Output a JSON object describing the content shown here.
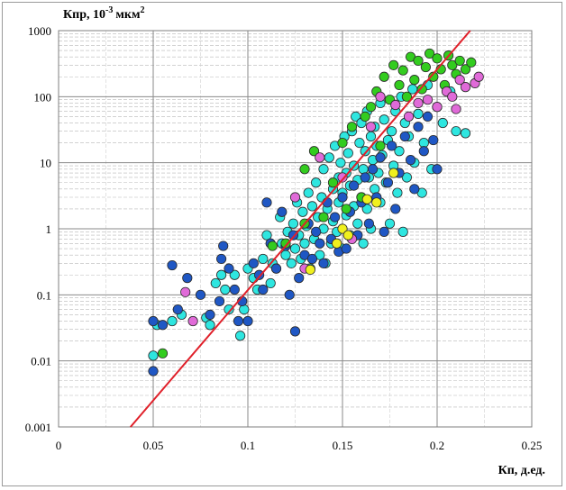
{
  "chart_data": {
    "type": "scatter",
    "title": "",
    "ylabel": "Кпр, 10",
    "ylabel_exp": "-3",
    "ylabel_unit": "мкм",
    "ylabel_sup": "2",
    "xlabel": "Кп, д.ед.",
    "xscale": "linear",
    "yscale": "log",
    "xlim": [
      0,
      0.25
    ],
    "ylim": [
      0.001,
      1000
    ],
    "x_ticks": [
      0,
      0.05,
      0.1,
      0.15,
      0.2,
      0.25
    ],
    "x_tick_labels": [
      "0",
      "0.05",
      "0.1",
      "0.15",
      "0.2",
      "0.25"
    ],
    "y_ticks": [
      0.001,
      0.01,
      0.1,
      1,
      10,
      100,
      1000
    ],
    "y_tick_labels": [
      "0.001",
      "0.01",
      "0.1",
      "1",
      "10",
      "100",
      "1000"
    ],
    "grid": "major and minor",
    "colors": {
      "trend": "#e0202a",
      "cyan": "#2ee6e0",
      "blue": "#1f57c4",
      "green": "#33cc1f",
      "magenta": "#e06ad8",
      "yellow": "#f0f01e",
      "marker_edge": "#2a2a2a"
    },
    "trend_line": {
      "x": [
        0.038,
        0.2175
      ],
      "y": [
        0.001,
        1000
      ]
    },
    "series": [
      {
        "name": "cyan",
        "color": "#2ee6e0",
        "points": [
          [
            0.05,
            0.012
          ],
          [
            0.052,
            0.035
          ],
          [
            0.06,
            0.04
          ],
          [
            0.065,
            0.05
          ],
          [
            0.078,
            0.045
          ],
          [
            0.08,
            0.035
          ],
          [
            0.083,
            0.15
          ],
          [
            0.086,
            0.2
          ],
          [
            0.088,
            0.12
          ],
          [
            0.09,
            0.06
          ],
          [
            0.093,
            0.2
          ],
          [
            0.096,
            0.024
          ],
          [
            0.098,
            0.06
          ],
          [
            0.1,
            0.25
          ],
          [
            0.103,
            0.18
          ],
          [
            0.105,
            0.12
          ],
          [
            0.108,
            0.35
          ],
          [
            0.11,
            0.8
          ],
          [
            0.112,
            0.15
          ],
          [
            0.113,
            0.3
          ],
          [
            0.115,
            0.25
          ],
          [
            0.117,
            1.5
          ],
          [
            0.118,
            0.6
          ],
          [
            0.12,
            0.4
          ],
          [
            0.121,
            0.9
          ],
          [
            0.123,
            0.3
          ],
          [
            0.124,
            1.2
          ],
          [
            0.125,
            0.5
          ],
          [
            0.126,
            2.5
          ],
          [
            0.127,
            0.8
          ],
          [
            0.128,
            0.35
          ],
          [
            0.129,
            1.8
          ],
          [
            0.13,
            0.6
          ],
          [
            0.131,
            1.1
          ],
          [
            0.132,
            3.5
          ],
          [
            0.133,
            0.25
          ],
          [
            0.134,
            2.2
          ],
          [
            0.135,
            0.7
          ],
          [
            0.136,
            5
          ],
          [
            0.137,
            1.5
          ],
          [
            0.138,
            0.4
          ],
          [
            0.139,
            3
          ],
          [
            0.14,
            1
          ],
          [
            0.14,
            8
          ],
          [
            0.141,
            0.3
          ],
          [
            0.142,
            2
          ],
          [
            0.143,
            12
          ],
          [
            0.144,
            0.6
          ],
          [
            0.145,
            4
          ],
          [
            0.145,
            1.3
          ],
          [
            0.146,
            18
          ],
          [
            0.147,
            0.9
          ],
          [
            0.148,
            6
          ],
          [
            0.148,
            2.5
          ],
          [
            0.149,
            10
          ],
          [
            0.15,
            0.5
          ],
          [
            0.15,
            3.5
          ],
          [
            0.151,
            25
          ],
          [
            0.152,
            1.6
          ],
          [
            0.152,
            7
          ],
          [
            0.153,
            14
          ],
          [
            0.154,
            0.8
          ],
          [
            0.154,
            4.5
          ],
          [
            0.155,
            30
          ],
          [
            0.156,
            2.2
          ],
          [
            0.156,
            9
          ],
          [
            0.157,
            50
          ],
          [
            0.158,
            1.2
          ],
          [
            0.158,
            5.5
          ],
          [
            0.159,
            20
          ],
          [
            0.16,
            3
          ],
          [
            0.16,
            40
          ],
          [
            0.161,
            0.6
          ],
          [
            0.161,
            8
          ],
          [
            0.162,
            15
          ],
          [
            0.163,
            2
          ],
          [
            0.163,
            60
          ],
          [
            0.164,
            6
          ],
          [
            0.165,
            25
          ],
          [
            0.165,
            1
          ],
          [
            0.166,
            11
          ],
          [
            0.167,
            4
          ],
          [
            0.167,
            35
          ],
          [
            0.168,
            18
          ],
          [
            0.169,
            7
          ],
          [
            0.17,
            80
          ],
          [
            0.17,
            2.5
          ],
          [
            0.171,
            13
          ],
          [
            0.172,
            45
          ],
          [
            0.173,
            5
          ],
          [
            0.174,
            22
          ],
          [
            0.175,
            1.2
          ],
          [
            0.176,
            30
          ],
          [
            0.177,
            9
          ],
          [
            0.178,
            60
          ],
          [
            0.179,
            3.5
          ],
          [
            0.18,
            15
          ],
          [
            0.181,
            100
          ],
          [
            0.182,
            0.9
          ],
          [
            0.183,
            40
          ],
          [
            0.184,
            6
          ],
          [
            0.185,
            25
          ],
          [
            0.187,
            130
          ],
          [
            0.188,
            10
          ],
          [
            0.19,
            55
          ],
          [
            0.192,
            3.5
          ],
          [
            0.193,
            20
          ],
          [
            0.195,
            150
          ],
          [
            0.197,
            8
          ],
          [
            0.2,
            70
          ],
          [
            0.203,
            40
          ],
          [
            0.207,
            120
          ],
          [
            0.21,
            30
          ],
          [
            0.215,
            28
          ]
        ]
      },
      {
        "name": "blue",
        "color": "#1f57c4",
        "points": [
          [
            0.05,
            0.04
          ],
          [
            0.05,
            0.007
          ],
          [
            0.055,
            0.035
          ],
          [
            0.06,
            0.28
          ],
          [
            0.063,
            0.06
          ],
          [
            0.068,
            0.18
          ],
          [
            0.075,
            0.1
          ],
          [
            0.08,
            0.05
          ],
          [
            0.085,
            0.08
          ],
          [
            0.086,
            0.35
          ],
          [
            0.087,
            0.55
          ],
          [
            0.09,
            0.25
          ],
          [
            0.093,
            0.12
          ],
          [
            0.095,
            0.04
          ],
          [
            0.097,
            0.08
          ],
          [
            0.1,
            0.04
          ],
          [
            0.103,
            0.3
          ],
          [
            0.106,
            0.2
          ],
          [
            0.108,
            0.12
          ],
          [
            0.11,
            2.5
          ],
          [
            0.112,
            0.6
          ],
          [
            0.115,
            0.25
          ],
          [
            0.118,
            1.8
          ],
          [
            0.12,
            0.55
          ],
          [
            0.122,
            0.1
          ],
          [
            0.124,
            0.8
          ],
          [
            0.125,
            0.028
          ],
          [
            0.127,
            0.18
          ],
          [
            0.13,
            0.4
          ],
          [
            0.132,
            1.2
          ],
          [
            0.134,
            0.35
          ],
          [
            0.136,
            0.9
          ],
          [
            0.138,
            0.6
          ],
          [
            0.14,
            0.3
          ],
          [
            0.142,
            2.5
          ],
          [
            0.144,
            0.7
          ],
          [
            0.146,
            1.5
          ],
          [
            0.148,
            0.45
          ],
          [
            0.15,
            3
          ],
          [
            0.152,
            0.5
          ],
          [
            0.154,
            1.8
          ],
          [
            0.156,
            4.5
          ],
          [
            0.158,
            0.8
          ],
          [
            0.16,
            2.5
          ],
          [
            0.162,
            6
          ],
          [
            0.164,
            1.2
          ],
          [
            0.166,
            8
          ],
          [
            0.168,
            3
          ],
          [
            0.17,
            12
          ],
          [
            0.172,
            0.9
          ],
          [
            0.174,
            5
          ],
          [
            0.176,
            18
          ],
          [
            0.178,
            2
          ],
          [
            0.18,
            7
          ],
          [
            0.183,
            25
          ],
          [
            0.186,
            11
          ],
          [
            0.188,
            4
          ],
          [
            0.19,
            35
          ],
          [
            0.193,
            15
          ],
          [
            0.195,
            50
          ],
          [
            0.198,
            22
          ],
          [
            0.2,
            8
          ]
        ]
      },
      {
        "name": "green",
        "color": "#33cc1f",
        "points": [
          [
            0.055,
            0.013
          ],
          [
            0.113,
            0.55
          ],
          [
            0.12,
            0.6
          ],
          [
            0.13,
            1.2
          ],
          [
            0.13,
            8
          ],
          [
            0.135,
            15
          ],
          [
            0.14,
            1.5
          ],
          [
            0.145,
            5
          ],
          [
            0.15,
            20
          ],
          [
            0.152,
            2
          ],
          [
            0.155,
            35
          ],
          [
            0.16,
            3
          ],
          [
            0.162,
            50
          ],
          [
            0.165,
            70
          ],
          [
            0.168,
            120
          ],
          [
            0.17,
            18
          ],
          [
            0.172,
            200
          ],
          [
            0.175,
            90
          ],
          [
            0.177,
            300
          ],
          [
            0.18,
            150
          ],
          [
            0.182,
            250
          ],
          [
            0.184,
            100
          ],
          [
            0.186,
            400
          ],
          [
            0.188,
            180
          ],
          [
            0.19,
            350
          ],
          [
            0.192,
            130
          ],
          [
            0.194,
            280
          ],
          [
            0.196,
            450
          ],
          [
            0.198,
            200
          ],
          [
            0.2,
            380
          ],
          [
            0.202,
            260
          ],
          [
            0.204,
            150
          ],
          [
            0.206,
            420
          ],
          [
            0.208,
            300
          ],
          [
            0.21,
            220
          ],
          [
            0.212,
            350
          ],
          [
            0.215,
            260
          ],
          [
            0.218,
            330
          ]
        ]
      },
      {
        "name": "magenta",
        "color": "#e06ad8",
        "points": [
          [
            0.067,
            0.11
          ],
          [
            0.071,
            0.04
          ],
          [
            0.125,
            3
          ],
          [
            0.13,
            0.25
          ],
          [
            0.138,
            12
          ],
          [
            0.15,
            6
          ],
          [
            0.155,
            0.7
          ],
          [
            0.165,
            35
          ],
          [
            0.17,
            100
          ],
          [
            0.178,
            75
          ],
          [
            0.185,
            50
          ],
          [
            0.19,
            80
          ],
          [
            0.195,
            90
          ],
          [
            0.2,
            70
          ],
          [
            0.205,
            120
          ],
          [
            0.208,
            100
          ],
          [
            0.21,
            65
          ],
          [
            0.212,
            180
          ],
          [
            0.215,
            140
          ],
          [
            0.22,
            160
          ],
          [
            0.222,
            200
          ]
        ]
      },
      {
        "name": "yellow",
        "color": "#f0f01e",
        "points": [
          [
            0.133,
            0.24
          ],
          [
            0.147,
            0.6
          ],
          [
            0.15,
            1
          ],
          [
            0.153,
            0.8
          ],
          [
            0.163,
            2.8
          ],
          [
            0.168,
            2.5
          ],
          [
            0.177,
            7
          ]
        ]
      }
    ]
  }
}
